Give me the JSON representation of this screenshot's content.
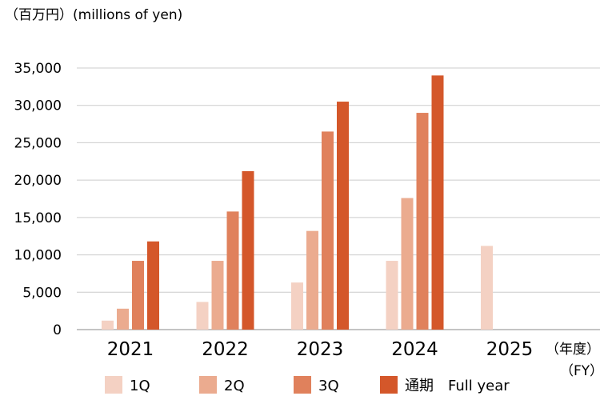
{
  "chart_data": {
    "type": "bar",
    "unit_label": "（百万円）(millions of yen)",
    "x_unit_label_line1": "（年度）",
    "x_unit_label_line2": "（FY）",
    "categories": [
      "2021",
      "2022",
      "2023",
      "2024",
      "2025"
    ],
    "ylim": [
      0,
      35000
    ],
    "yticks": [
      0,
      5000,
      10000,
      15000,
      20000,
      25000,
      30000,
      35000
    ],
    "ytick_labels": [
      "0",
      "5,000",
      "10,000",
      "15,000",
      "20,000",
      "25,000",
      "30,000",
      "35,000"
    ],
    "grid": true,
    "legend_position": "bottom",
    "series": [
      {
        "name": "1Q",
        "color": "#f4d1c3",
        "values": [
          1200,
          3700,
          6300,
          9200,
          11200
        ]
      },
      {
        "name": "2Q",
        "color": "#ebab8f",
        "values": [
          2800,
          9200,
          13200,
          17600,
          null
        ]
      },
      {
        "name": "3Q",
        "color": "#e0815c",
        "values": [
          9200,
          15800,
          26500,
          29000,
          null
        ]
      },
      {
        "name": "通期　Full year",
        "color": "#d4572a",
        "values": [
          11800,
          21200,
          30500,
          34000,
          null
        ]
      }
    ]
  }
}
